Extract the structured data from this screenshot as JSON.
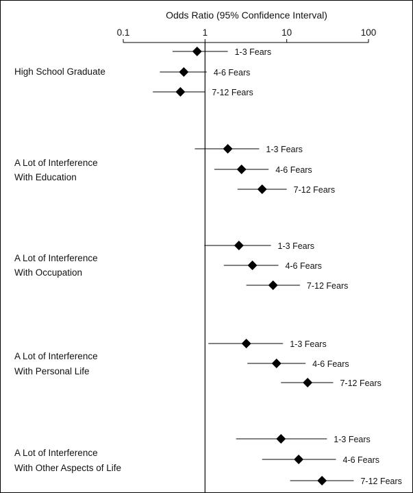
{
  "chart_data": {
    "type": "forest",
    "title": "",
    "xlabel": "Odds Ratio (95% Confidence Interval)",
    "xscale": "log",
    "xlim": [
      0.1,
      100
    ],
    "xticks": [
      0.1,
      1,
      10,
      100
    ],
    "xtick_labels": [
      "0.1",
      "1",
      "10",
      "100"
    ],
    "reference_line": 1,
    "groups": [
      {
        "label_lines": [
          "High School Graduate"
        ],
        "rows": [
          {
            "label": "1-3 Fears",
            "or": 0.8,
            "ci": [
              0.4,
              1.9
            ]
          },
          {
            "label": "4-6 Fears",
            "or": 0.55,
            "ci": [
              0.28,
              1.05
            ]
          },
          {
            "label": "7-12 Fears",
            "or": 0.5,
            "ci": [
              0.23,
              1.0
            ]
          }
        ]
      },
      {
        "label_lines": [
          "A Lot of Interference",
          "With Education"
        ],
        "rows": [
          {
            "label": "1-3 Fears",
            "or": 1.9,
            "ci": [
              0.75,
              4.6
            ]
          },
          {
            "label": "4-6 Fears",
            "or": 2.8,
            "ci": [
              1.3,
              6.0
            ]
          },
          {
            "label": "7-12 Fears",
            "or": 5.0,
            "ci": [
              2.5,
              10.0
            ]
          }
        ]
      },
      {
        "label_lines": [
          "A Lot of Interference",
          "With Occupation"
        ],
        "rows": [
          {
            "label": "1-3 Fears",
            "or": 2.6,
            "ci": [
              0.98,
              6.4
            ]
          },
          {
            "label": "4-6 Fears",
            "or": 3.8,
            "ci": [
              1.7,
              7.9
            ]
          },
          {
            "label": "7-12 Fears",
            "or": 6.8,
            "ci": [
              3.2,
              14.5
            ]
          }
        ]
      },
      {
        "label_lines": [
          "A Lot of Interference",
          "With Personal Life"
        ],
        "rows": [
          {
            "label": "1-3 Fears",
            "or": 3.2,
            "ci": [
              1.1,
              9.0
            ]
          },
          {
            "label": "4-6 Fears",
            "or": 7.5,
            "ci": [
              3.3,
              17.0
            ]
          },
          {
            "label": "7-12 Fears",
            "or": 18.0,
            "ci": [
              8.5,
              37.0
            ]
          }
        ]
      },
      {
        "label_lines": [
          "A Lot of Interference",
          "With Other Aspects of Life"
        ],
        "rows": [
          {
            "label": "1-3 Fears",
            "or": 8.5,
            "ci": [
              2.4,
              31.0
            ]
          },
          {
            "label": "4-6 Fears",
            "or": 14.0,
            "ci": [
              5.0,
              40.0
            ]
          },
          {
            "label": "7-12 Fears",
            "or": 27.0,
            "ci": [
              11.0,
              66.0
            ]
          }
        ]
      }
    ]
  }
}
